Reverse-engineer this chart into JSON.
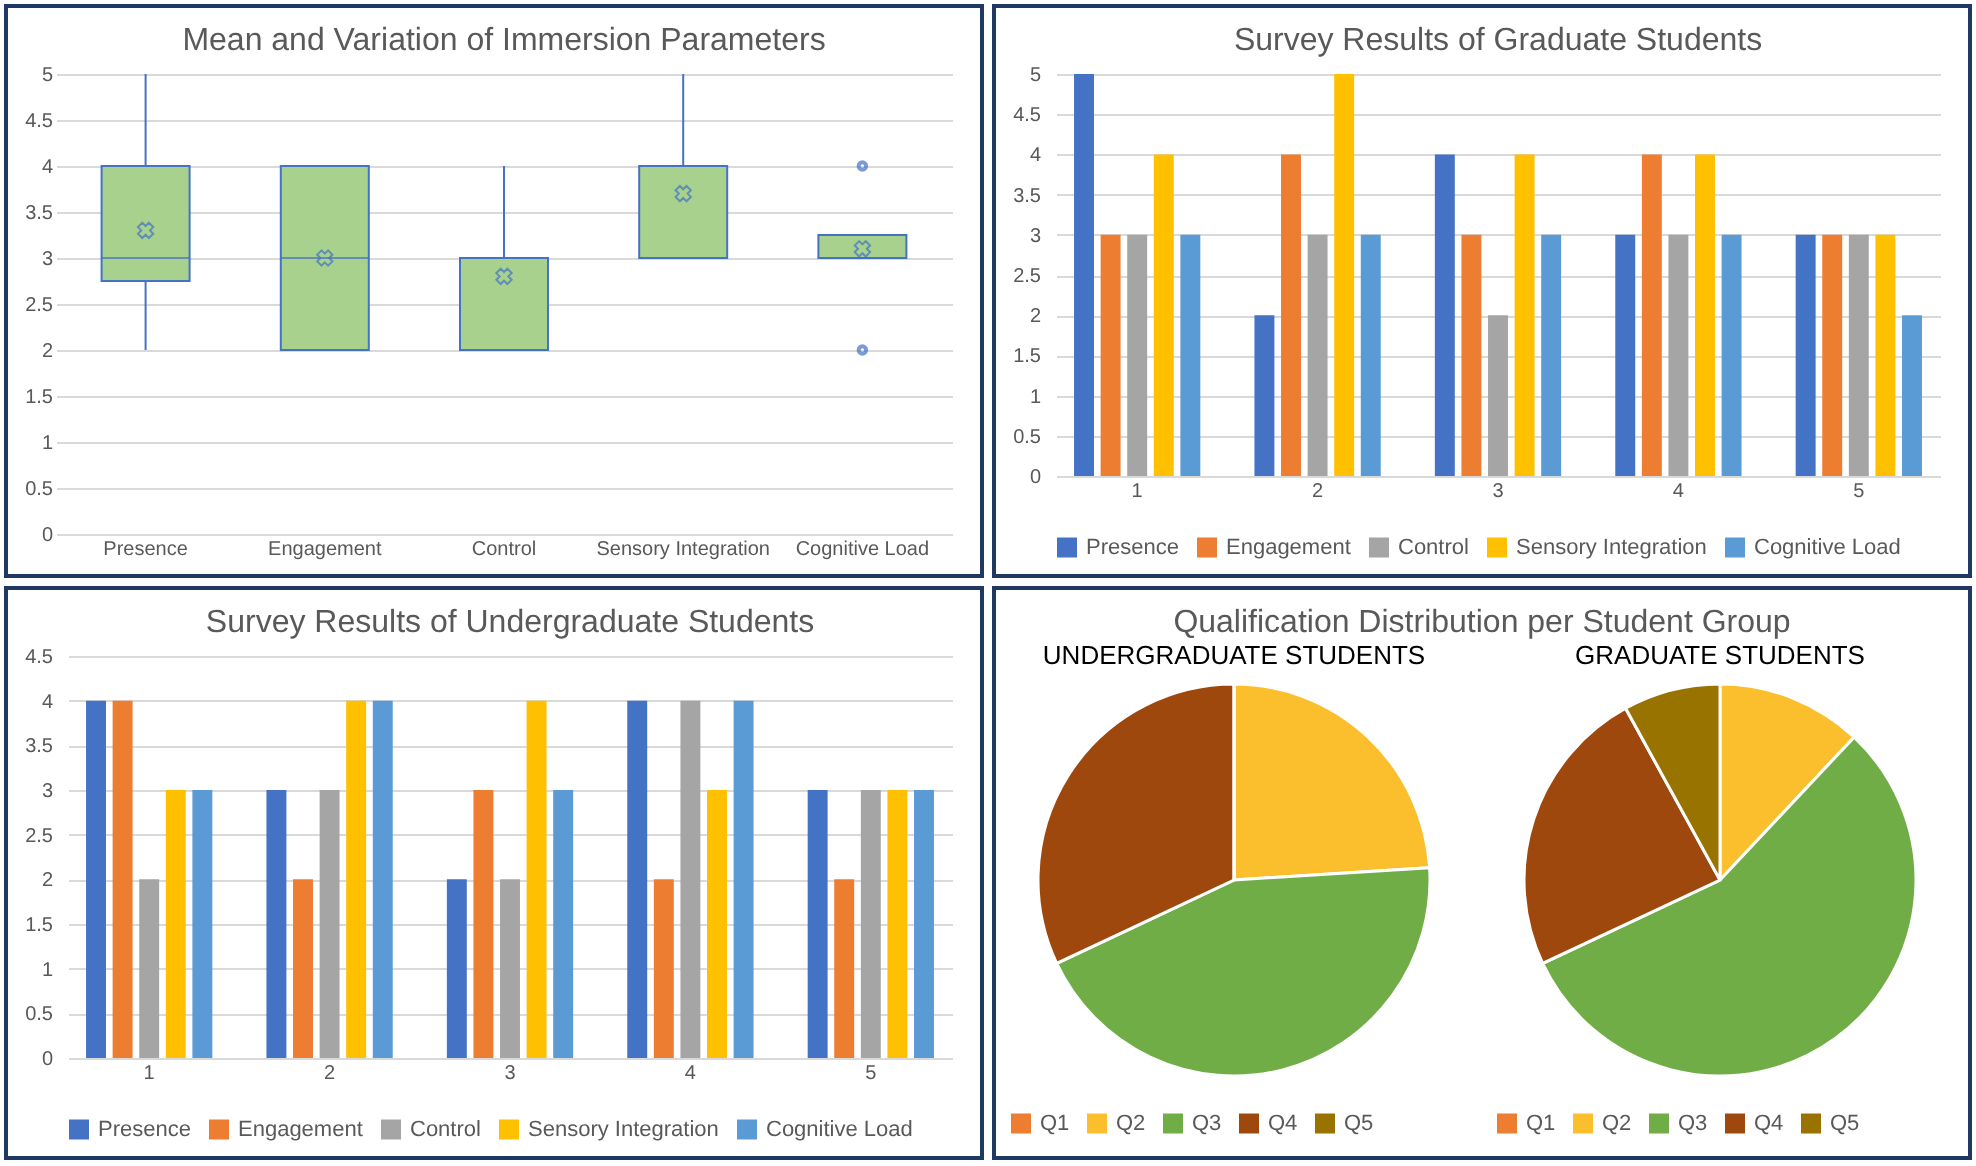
{
  "chart_data": [
    {
      "type": "box",
      "title": "Mean and Variation of Immersion Parameters",
      "categories": [
        "Presence",
        "Engagement",
        "Control",
        "Sensory Integration",
        "Cognitive Load"
      ],
      "ylim": [
        0,
        5
      ],
      "yticks": [
        0,
        0.5,
        1,
        1.5,
        2,
        2.5,
        3,
        3.5,
        4,
        4.5,
        5
      ],
      "grid": "y",
      "marker": "cross",
      "series": [
        {
          "color": "#a9d18e",
          "boxes": [
            {
              "low": 2,
              "q1": 2.75,
              "median": 3,
              "q3": 4,
              "high": 5,
              "mean": 3.3
            },
            {
              "low": 2,
              "q1": 2,
              "median": 3,
              "q3": 4,
              "high": 4,
              "mean": 3
            },
            {
              "low": 2,
              "q1": 2,
              "median": 3,
              "q3": 3,
              "high": 4,
              "mean": 2.8
            },
            {
              "low": 3,
              "q1": 3,
              "median": 4,
              "q3": 4,
              "high": 5,
              "mean": 3.7
            },
            {
              "low": 3,
              "q1": 3,
              "median": 3,
              "q3": 3.25,
              "high": 3.25,
              "mean": 3.1,
              "outliers": [
                2,
                4
              ]
            }
          ]
        }
      ]
    },
    {
      "type": "bar",
      "title": "Survey Results of Graduate Students",
      "categories": [
        "1",
        "2",
        "3",
        "4",
        "5"
      ],
      "ylim": [
        0,
        5
      ],
      "yticks": [
        0,
        0.5,
        1,
        1.5,
        2,
        2.5,
        3,
        3.5,
        4,
        4.5,
        5
      ],
      "grid": "y",
      "legend": "bottom",
      "series": [
        {
          "name": "Presence",
          "color": "#4472c4",
          "values": [
            5,
            2,
            4,
            3,
            3
          ]
        },
        {
          "name": "Engagement",
          "color": "#ed7d31",
          "values": [
            3,
            4,
            3,
            4,
            3
          ]
        },
        {
          "name": "Control",
          "color": "#a5a5a5",
          "values": [
            3,
            3,
            2,
            3,
            3
          ]
        },
        {
          "name": "Sensory Integration",
          "color": "#ffc000",
          "values": [
            4,
            5,
            4,
            4,
            3
          ]
        },
        {
          "name": "Cognitive Load",
          "color": "#5b9bd5",
          "values": [
            3,
            3,
            3,
            3,
            2
          ]
        }
      ]
    },
    {
      "type": "bar",
      "title": "Survey Results of Undergraduate Students",
      "categories": [
        "1",
        "2",
        "3",
        "4",
        "5"
      ],
      "ylim": [
        0,
        4.5
      ],
      "yticks": [
        0,
        0.5,
        1,
        1.5,
        2,
        2.5,
        3,
        3.5,
        4,
        4.5
      ],
      "grid": "y",
      "legend": "bottom",
      "series": [
        {
          "name": "Presence",
          "color": "#4472c4",
          "values": [
            4,
            3,
            2,
            4,
            3
          ]
        },
        {
          "name": "Engagement",
          "color": "#ed7d31",
          "values": [
            4,
            2,
            3,
            2,
            2
          ]
        },
        {
          "name": "Control",
          "color": "#a5a5a5",
          "values": [
            2,
            3,
            2,
            4,
            3
          ]
        },
        {
          "name": "Sensory Integration",
          "color": "#ffc000",
          "values": [
            3,
            4,
            4,
            3,
            3
          ]
        },
        {
          "name": "Cognitive Load",
          "color": "#5b9bd5",
          "values": [
            3,
            4,
            3,
            4,
            3
          ]
        }
      ]
    },
    {
      "type": "pie",
      "title": "Qualification Distribution per Student Group",
      "subtitle": "UNDERGRADUATE STUDENTS",
      "categories": [
        "Q1",
        "Q2",
        "Q3",
        "Q4",
        "Q5"
      ],
      "values": [
        0,
        24,
        44,
        32,
        0
      ],
      "colors": [
        "#ed7d31",
        "#fbbf2d",
        "#70ad47",
        "#9e480e",
        "#997300"
      ],
      "legend": "bottom"
    },
    {
      "type": "pie",
      "subtitle": "GRADUATE STUDENTS",
      "categories": [
        "Q1",
        "Q2",
        "Q3",
        "Q4",
        "Q5"
      ],
      "values": [
        0,
        12,
        56,
        24,
        8
      ],
      "colors": [
        "#ed7d31",
        "#fbbf2d",
        "#70ad47",
        "#9e480e",
        "#997300"
      ],
      "legend": "bottom"
    }
  ]
}
